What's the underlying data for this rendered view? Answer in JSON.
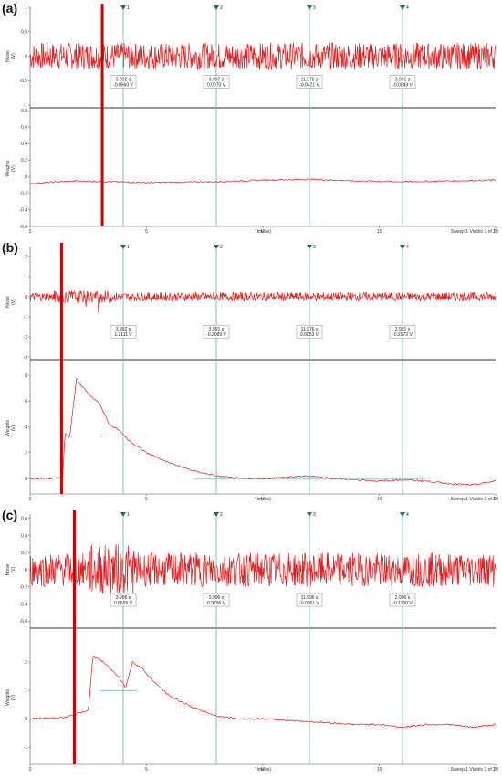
{
  "chart_data": [
    {
      "panel_label": "(a)",
      "type": "line",
      "x_label": "Time (s)",
      "x_ticks": [
        "0",
        "5",
        "10",
        "15",
        "20"
      ],
      "x_range": [
        0,
        20
      ],
      "sweep_label": "Sweep 1 Visible 1 of 1",
      "top": {
        "ylabel": "Noise\n(V)",
        "y_ticks": [
          "1",
          "0.5",
          "0",
          "-0.5",
          "-1"
        ],
        "ylim": [
          -1,
          1
        ],
        "noise_amp": 0.28,
        "noise_mean": 0.0
      },
      "bottom": {
        "ylabel": "Weights\n(V)",
        "y_ticks": [
          "0.8",
          "0.6",
          "0.4",
          "0.2",
          "0",
          "-0.2",
          "-0.4",
          "-0.6"
        ],
        "ylim": [
          -0.6,
          0.8
        ],
        "signal": {
          "x": [
            0,
            2,
            5,
            8,
            10,
            12,
            14,
            16,
            18,
            20
          ],
          "y": [
            -0.08,
            -0.05,
            -0.07,
            -0.06,
            -0.04,
            -0.03,
            -0.05,
            -0.06,
            -0.05,
            -0.04
          ]
        }
      },
      "marker_x": 3.1,
      "cursors": [
        {
          "id": "1",
          "x": 4.0,
          "time": "3.992 s",
          "value": "-0.0560 V"
        },
        {
          "id": "2",
          "x": 8.0,
          "time": "3.997 s",
          "value": "0.0070 V"
        },
        {
          "id": "3",
          "x": 12.0,
          "time": "11.976 s",
          "value": "-0.0421 V"
        },
        {
          "id": "4",
          "x": 16.0,
          "time": "3.991 s",
          "value": "-0.0049 V"
        }
      ]
    },
    {
      "panel_label": "(b)",
      "type": "line",
      "x_label": "Time (s)",
      "x_ticks": [
        "0",
        "5",
        "10",
        "15",
        "20"
      ],
      "x_range": [
        0,
        20
      ],
      "sweep_label": "Sweep 1 Visible 1 of 1",
      "top": {
        "ylabel": "Noise\n(V)",
        "y_ticks": [
          "2",
          "1",
          "0",
          "-1",
          "-2",
          "-3"
        ],
        "ylim": [
          -3,
          2.5
        ],
        "noise_amp": 0.22,
        "noise_mean": 0.0
      },
      "bottom": {
        "ylabel": "Weights\n(V)",
        "y_ticks": [
          "8",
          "6",
          "4",
          "2",
          "0"
        ],
        "ylim": [
          -1.2,
          9
        ],
        "signal": {
          "x": [
            0,
            1,
            1.4,
            1.5,
            1.7,
            2.0,
            2.2,
            2.6,
            3.0,
            3.4,
            3.8,
            4.2,
            5,
            6,
            7,
            8,
            9,
            10,
            11,
            12,
            13,
            14,
            15,
            16,
            17,
            18,
            19,
            20
          ],
          "y": [
            0.0,
            0.0,
            0.1,
            3.5,
            3.2,
            7.8,
            7.2,
            6.4,
            5.8,
            4.2,
            3.8,
            3.0,
            2.0,
            1.2,
            0.6,
            0.2,
            0.0,
            0.0,
            0.1,
            0.2,
            0.0,
            -0.1,
            -0.2,
            -0.1,
            -0.2,
            -0.4,
            -0.5,
            -0.2
          ]
        }
      },
      "marker_x": 1.35,
      "cursors": [
        {
          "id": "1",
          "x": 4.0,
          "time": "3.992 s",
          "value": "1.2111 V"
        },
        {
          "id": "2",
          "x": 8.0,
          "time": "3.991 s",
          "value": "-0.2089 V"
        },
        {
          "id": "3",
          "x": 12.0,
          "time": "11.976 s",
          "value": "0.0053 V"
        },
        {
          "id": "4",
          "x": 16.0,
          "time": "3.991 s",
          "value": "-0.2972 V"
        }
      ]
    },
    {
      "panel_label": "(c)",
      "type": "line",
      "x_label": "Time (s)",
      "x_ticks": [
        "0",
        "5",
        "10",
        "15",
        "20"
      ],
      "x_range": [
        0,
        20
      ],
      "sweep_label": "Sweep 1 Visible 1 of 1",
      "top": {
        "ylabel": "Noise\n(V)",
        "y_ticks": [
          "0.6",
          "0.4",
          "0.2",
          "0",
          "-0.2",
          "-0.4",
          "-0.6"
        ],
        "ylim": [
          -0.65,
          0.65
        ],
        "noise_amp": 0.2,
        "noise_mean": 0.0
      },
      "bottom": {
        "ylabel": "Weights\n(V)",
        "y_ticks": [
          "2",
          "1",
          "0",
          "-1"
        ],
        "ylim": [
          -1.6,
          3.1
        ],
        "signal": {
          "x": [
            0,
            1.5,
            2.5,
            2.7,
            3.0,
            3.4,
            3.8,
            4.1,
            4.4,
            4.8,
            5.2,
            6,
            7,
            8,
            9,
            10,
            12,
            14,
            15,
            16,
            17,
            18,
            19,
            20
          ],
          "y": [
            0.0,
            0.05,
            0.3,
            2.2,
            2.1,
            1.8,
            1.5,
            1.1,
            2.0,
            1.8,
            1.4,
            0.8,
            0.4,
            0.1,
            0.0,
            0.0,
            -0.1,
            -0.2,
            -0.2,
            -0.3,
            -0.2,
            -0.2,
            -0.3,
            -0.2
          ]
        }
      },
      "marker_x": 1.9,
      "cursors": [
        {
          "id": "1",
          "x": 4.0,
          "time": "3.996 s",
          "value": "0.6655 V"
        },
        {
          "id": "2",
          "x": 8.0,
          "time": "3.996 s",
          "value": "0.9796 V"
        },
        {
          "id": "3",
          "x": 12.0,
          "time": "11.996 s",
          "value": "-0.0961 V"
        },
        {
          "id": "4",
          "x": 16.0,
          "time": "2.996 s",
          "value": "-0.1160 V"
        }
      ]
    }
  ],
  "colors": {
    "trace": "#e41a1c",
    "marker": "#cc0000",
    "cursor": "#5fb3a8",
    "cursor_head": "#1f6b5e",
    "axis": "#555555",
    "grid": "#cccccc"
  }
}
